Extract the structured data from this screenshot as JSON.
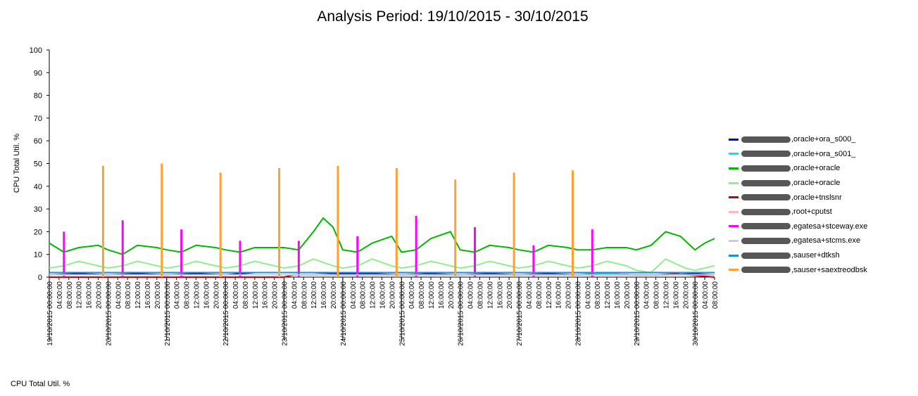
{
  "chart_data": {
    "type": "line",
    "title": "Analysis Period: 19/10/2015 - 30/10/2015",
    "xlabel": "",
    "ylabel": "CPU Total Util. %",
    "ylim": [
      0,
      100
    ],
    "yticks": [
      0,
      10,
      20,
      30,
      40,
      50,
      60,
      70,
      80,
      90,
      100
    ],
    "xlim": [
      "19/10/2015 00:00:00",
      "30/10/2015 08:00:00"
    ],
    "grid": false,
    "legend_position": "right",
    "x_tick_labels": [
      "19/10/2015  00:00:00",
      "04:00:00",
      "08:00:00",
      "12:00:00",
      "16:00:00",
      "20:00:00",
      "20/10/2015  00:00:00",
      "04:00:00",
      "08:00:00",
      "12:00:00",
      "16:00:00",
      "20:00:00",
      "21/10/2015  00:00:00",
      "04:00:00",
      "08:00:00",
      "12:00:00",
      "16:00:00",
      "20:00:00",
      "22/10/2015  00:00:00",
      "04:00:00",
      "08:00:00",
      "12:00:00",
      "16:00:00",
      "20:00:00",
      "23/10/2015  00:00:00",
      "04:00:00",
      "08:00:00",
      "12:00:00",
      "16:00:00",
      "20:00:00",
      "24/10/2015  00:00:00",
      "04:00:00",
      "08:00:00",
      "12:00:00",
      "16:00:00",
      "20:00:00",
      "25/10/2015  00:00:00",
      "04:00:00",
      "08:00:00",
      "12:00:00",
      "16:00:00",
      "20:00:00",
      "26/10/2015  00:00:00",
      "04:00:00",
      "08:00:00",
      "12:00:00",
      "16:00:00",
      "20:00:00",
      "27/10/2015  00:00:00",
      "04:00:00",
      "08:00:00",
      "12:00:00",
      "16:00:00",
      "20:00:00",
      "28/10/2015  00:00:00",
      "04:00:00",
      "08:00:00",
      "12:00:00",
      "16:00:00",
      "20:00:00",
      "29/10/2015  00:00:00",
      "04:00:00",
      "08:00:00",
      "12:00:00",
      "16:00:00",
      "20:00:00",
      "30/10/2015  00:00:00",
      "04:00:00",
      "08:00:00"
    ],
    "series": [
      {
        "name": ",oracle+ora_s000_",
        "color": "#0000cc",
        "x": [
          "19/10 00:00",
          "19/10 12:00",
          "20/10 00:00",
          "20/10 12:00",
          "21/10 00:00",
          "21/10 12:00",
          "22/10 00:00",
          "22/10 12:00",
          "23/10 00:00",
          "23/10 12:00",
          "24/10 00:00",
          "24/10 12:00",
          "25/10 00:00",
          "25/10 12:00",
          "26/10 00:00",
          "26/10 12:00",
          "27/10 00:00",
          "27/10 12:00",
          "28/10 00:00",
          "28/10 12:00",
          "29/10 00:00",
          "29/10 12:00",
          "30/10 00:00",
          "30/10 08:00"
        ],
        "values": [
          1,
          1.5,
          1,
          1.5,
          1,
          1.5,
          1,
          2,
          2,
          2,
          1.5,
          1.5,
          1,
          1.5,
          1,
          1.5,
          1,
          1.5,
          1,
          1.5,
          1,
          1,
          1.5,
          1
        ]
      },
      {
        "name": ",oracle+ora_s001_",
        "color": "#00e5ee",
        "x": [
          "19/10 00:00",
          "20/10 00:00",
          "21/10 00:00",
          "22/10 00:00",
          "23/10 00:00",
          "24/10 00:00",
          "25/10 00:00",
          "26/10 00:00",
          "27/10 00:00",
          "28/10 00:00",
          "29/10 00:00",
          "30/10 00:00",
          "30/10 08:00"
        ],
        "values": [
          2,
          2,
          2,
          2,
          2,
          2,
          2,
          2,
          2,
          2,
          1,
          1,
          1
        ]
      },
      {
        "name": ",oracle+oracle",
        "color": "#00b800",
        "x": [
          "19/10 00:00",
          "19/10 06:00",
          "19/10 12:00",
          "19/10 20:00",
          "20/10 00:00",
          "20/10 06:00",
          "20/10 12:00",
          "20/10 20:00",
          "21/10 00:00",
          "21/10 06:00",
          "21/10 12:00",
          "21/10 20:00",
          "22/10 00:00",
          "22/10 06:00",
          "22/10 12:00",
          "22/10 20:00",
          "23/10 00:00",
          "23/10 06:00",
          "23/10 12:00",
          "23/10 16:00",
          "23/10 20:00",
          "24/10 00:00",
          "24/10 06:00",
          "24/10 12:00",
          "24/10 20:00",
          "25/10 00:00",
          "25/10 06:00",
          "25/10 12:00",
          "25/10 20:00",
          "26/10 00:00",
          "26/10 06:00",
          "26/10 12:00",
          "26/10 20:00",
          "27/10 00:00",
          "27/10 06:00",
          "27/10 12:00",
          "27/10 20:00",
          "28/10 00:00",
          "28/10 06:00",
          "28/10 12:00",
          "28/10 20:00",
          "29/10 00:00",
          "29/10 06:00",
          "29/10 12:00",
          "29/10 18:00",
          "30/10 00:00",
          "30/10 04:00",
          "30/10 08:00"
        ],
        "values": [
          15,
          11,
          13,
          14,
          12,
          10,
          14,
          13,
          12,
          11,
          14,
          13,
          12,
          11,
          13,
          13,
          13,
          12,
          20,
          26,
          22,
          12,
          11,
          15,
          18,
          11,
          12,
          17,
          20,
          12,
          11,
          14,
          13,
          12,
          11,
          14,
          13,
          12,
          12,
          13,
          13,
          12,
          14,
          20,
          18,
          12,
          15,
          17
        ]
      },
      {
        "name": ",oracle+oracle",
        "color": "#90ee90",
        "x": [
          "19/10 00:00",
          "19/10 06:00",
          "19/10 12:00",
          "19/10 20:00",
          "20/10 00:00",
          "20/10 06:00",
          "20/10 12:00",
          "20/10 20:00",
          "21/10 00:00",
          "21/10 06:00",
          "21/10 12:00",
          "21/10 20:00",
          "22/10 00:00",
          "22/10 06:00",
          "22/10 12:00",
          "22/10 20:00",
          "23/10 00:00",
          "23/10 06:00",
          "23/10 12:00",
          "23/10 20:00",
          "24/10 00:00",
          "24/10 06:00",
          "24/10 12:00",
          "24/10 20:00",
          "25/10 00:00",
          "25/10 06:00",
          "25/10 12:00",
          "25/10 20:00",
          "26/10 00:00",
          "26/10 06:00",
          "26/10 12:00",
          "26/10 20:00",
          "27/10 00:00",
          "27/10 06:00",
          "27/10 12:00",
          "27/10 20:00",
          "28/10 00:00",
          "28/10 06:00",
          "28/10 12:00",
          "28/10 20:00",
          "29/10 00:00",
          "29/10 06:00",
          "29/10 12:00",
          "29/10 20:00",
          "30/10 00:00",
          "30/10 08:00"
        ],
        "values": [
          4,
          5,
          7,
          5,
          4,
          5,
          7,
          5,
          4,
          5,
          7,
          5,
          4,
          5,
          7,
          5,
          4,
          5,
          8,
          5,
          4,
          5,
          8,
          5,
          4,
          5,
          7,
          5,
          4,
          5,
          7,
          5,
          4,
          5,
          7,
          5,
          4,
          5,
          7,
          5,
          3,
          2,
          8,
          4,
          3,
          5
        ]
      },
      {
        "name": ",oracle+tnslsnr",
        "color": "#cc0000",
        "x": [
          "19/10 00:00",
          "23/10 00:00",
          "23/10 04:00",
          "29/10 08:00",
          "29/10 16:00",
          "30/10 08:00"
        ],
        "values": [
          0,
          0,
          1,
          1,
          1.5,
          0
        ]
      },
      {
        "name": ",root+cputst",
        "color": "#ffb6c1",
        "x": [
          "19/10 00:00",
          "30/10 08:00"
        ],
        "values": [
          2,
          2
        ]
      },
      {
        "name": ",egatesa+stceway.exe",
        "color": "#ff00ff",
        "x": [
          "19/10 06:00",
          "20/10 06:00",
          "21/10 06:00",
          "22/10 06:00",
          "23/10 06:00",
          "24/10 06:00",
          "25/10 06:00",
          "26/10 06:00",
          "27/10 06:00",
          "28/10 06:00"
        ],
        "values": [
          20,
          25,
          21,
          16,
          16,
          18,
          27,
          22,
          14,
          21
        ]
      },
      {
        "name": ",egatesa+stcms.exe",
        "color": "#c8c8ff",
        "x": [
          "19/10 00:00",
          "30/10 08:00"
        ],
        "values": [
          1,
          1
        ]
      },
      {
        "name": ",sauser+dtksh",
        "color": "#1e90c8",
        "x": [
          "19/10 00:00",
          "30/10 08:00"
        ],
        "values": [
          2,
          2
        ]
      },
      {
        "name": ",sauser+saextreodbsk",
        "color": "#ffa030",
        "x": [
          "19/10 22:00",
          "20/10 22:00",
          "21/10 22:00",
          "22/10 22:00",
          "23/10 22:00",
          "24/10 22:00",
          "25/10 22:00",
          "26/10 22:00",
          "27/10 22:00"
        ],
        "values": [
          49,
          50,
          46,
          48,
          49,
          48,
          43,
          46,
          47
        ]
      }
    ]
  },
  "footer_label": "CPU Total Util. %"
}
